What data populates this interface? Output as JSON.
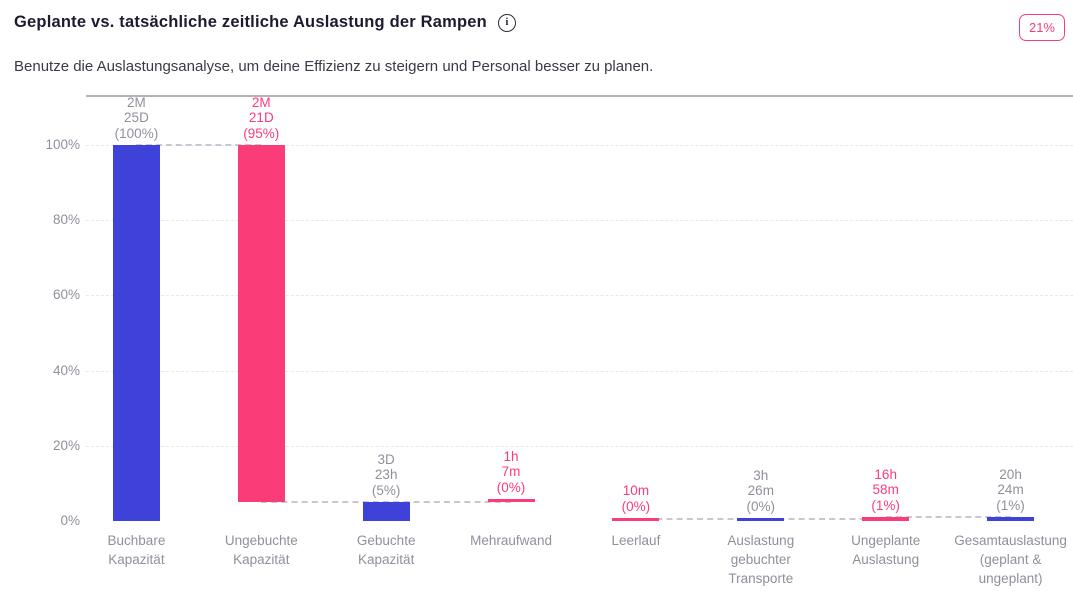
{
  "header": {
    "title": "Geplante vs. tatsächliche zeitliche Auslastung der Rampen",
    "info_icon": "info-circle",
    "info_glyph": "i",
    "badge": "21%",
    "subtitle": "Benutze die Auslastungsanalyse, um deine Effizienz zu steigern und Personal besser zu planen."
  },
  "colors": {
    "blue": "#3e42d8",
    "pink": "#fa3c78",
    "gray_label": "#918f9b",
    "title_text": "#1e1b30",
    "subtitle_text": "#3c3947",
    "gridline": "#e8e6ee",
    "connector": "#c8c6d0",
    "baseline": "#b3b1bc",
    "badge_accent": "#fa3c78"
  },
  "chart_data": {
    "type": "bar",
    "subtype": "waterfall",
    "title": "Geplante vs. tatsächliche zeitliche Auslastung der Rampen",
    "xlabel": "",
    "ylabel": "",
    "ylim": [
      0,
      100
    ],
    "grid": "horizontal dashed every 20%",
    "legend": "none",
    "yticks": [
      {
        "value": 0,
        "label": "0%"
      },
      {
        "value": 20,
        "label": "20%"
      },
      {
        "value": 40,
        "label": "40%"
      },
      {
        "value": 60,
        "label": "60%"
      },
      {
        "value": 80,
        "label": "80%"
      },
      {
        "value": 100,
        "label": "100%"
      }
    ],
    "categories": [
      "Buchbare Kapazität",
      "Ungebuchte Kapazität",
      "Gebuchte Kapazität",
      "Mehraufwand",
      "Leerlauf",
      "Auslastung gebuchter Transporte",
      "Ungeplante Auslastung",
      "Gesamtauslastung (geplant & ungeplant)"
    ],
    "bars": [
      {
        "category": "Buchbare Kapazität",
        "value_label": [
          "2M",
          "25D",
          "(100%)"
        ],
        "percent": 100,
        "from": 0,
        "to": 100,
        "color": "blue",
        "label_color": "gray"
      },
      {
        "category": "Ungebuchte Kapazität",
        "value_label": [
          "2M",
          "21D",
          "(95%)"
        ],
        "percent": 95,
        "from": 5,
        "to": 100,
        "color": "pink",
        "label_color": "pink"
      },
      {
        "category": "Gebuchte Kapazität",
        "value_label": [
          "3D",
          "23h",
          "(5%)"
        ],
        "percent": 5,
        "from": 0,
        "to": 5,
        "color": "blue",
        "label_color": "gray"
      },
      {
        "category": "Mehraufwand",
        "value_label": [
          "1h",
          "7m",
          "(0%)"
        ],
        "percent": 0,
        "from": 5,
        "to": 5,
        "color": "pink",
        "label_color": "pink"
      },
      {
        "category": "Leerlauf",
        "value_label": [
          "10m",
          "(0%)"
        ],
        "percent": 0,
        "from": 0,
        "to": 0,
        "color": "pink",
        "label_color": "pink"
      },
      {
        "category": "Auslastung gebuchter Transporte",
        "value_label": [
          "3h",
          "26m",
          "(0%)"
        ],
        "percent": 0,
        "from": 0,
        "to": 0,
        "color": "blue",
        "label_color": "gray"
      },
      {
        "category": "Ungeplante Auslastung",
        "value_label": [
          "16h",
          "58m",
          "(1%)"
        ],
        "percent": 1,
        "from": 0,
        "to": 1,
        "color": "pink",
        "label_color": "pink"
      },
      {
        "category": "Gesamtauslastung (geplant & ungeplant)",
        "value_label": [
          "20h",
          "24m",
          "(1%)"
        ],
        "percent": 1,
        "from": 0,
        "to": 1,
        "color": "blue",
        "label_color": "gray"
      }
    ],
    "connectors": [
      {
        "level": 100,
        "from": 0,
        "to": 1
      },
      {
        "level": 5,
        "from": 1,
        "to": 3
      },
      {
        "level": 0.5,
        "from": 4,
        "to": 6
      },
      {
        "level": 1,
        "from": 6,
        "to": 7
      }
    ]
  }
}
